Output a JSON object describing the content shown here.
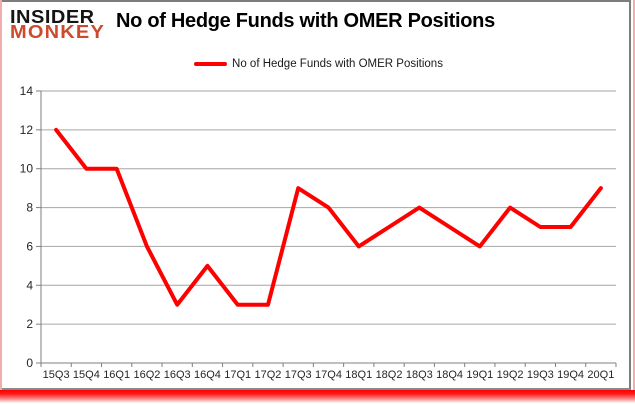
{
  "logo": {
    "line1": "INSIDER",
    "line2": "MONKEY"
  },
  "header": {
    "title": "No of Hedge Funds with OMER Positions"
  },
  "legend": {
    "label": "No of Hedge Funds with OMER Positions",
    "swatch_color": "#fe0000"
  },
  "chart_data": {
    "type": "line",
    "title": "No of Hedge Funds with OMER Positions",
    "categories": [
      "15Q3",
      "15Q4",
      "16Q1",
      "16Q2",
      "16Q3",
      "16Q4",
      "17Q1",
      "17Q2",
      "17Q3",
      "17Q4",
      "18Q1",
      "18Q2",
      "18Q3",
      "18Q4",
      "19Q1",
      "19Q2",
      "19Q3",
      "19Q4",
      "20Q1"
    ],
    "series": [
      {
        "name": "No of Hedge Funds with OMER Positions",
        "values": [
          12,
          10,
          10,
          6,
          3,
          5,
          3,
          3,
          9,
          8,
          6,
          7,
          8,
          7,
          6,
          8,
          7,
          7,
          9
        ]
      }
    ],
    "xlabel": "",
    "ylabel": "",
    "ylim": [
      0,
      14
    ],
    "ytick_step": 2,
    "grid": true,
    "legend_position": "top-center",
    "line_color": "#fe0000"
  },
  "colors": {
    "grid": "#a6a6a6",
    "axis": "#7f7f7f",
    "tick_text": "#262626",
    "logo_red": "#cd4a2d",
    "glow_red": "#ff0000"
  }
}
